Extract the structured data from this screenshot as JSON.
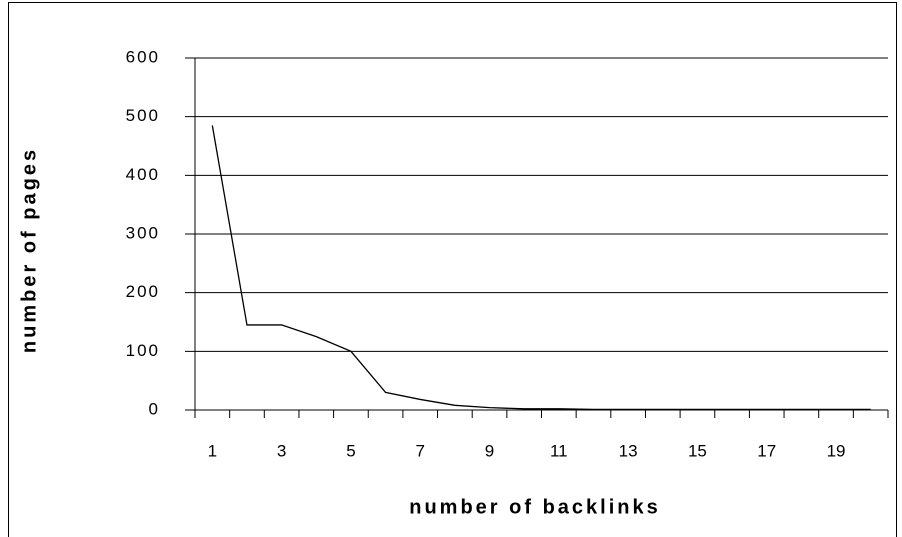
{
  "chart_data": {
    "type": "line",
    "categories": [
      1,
      null,
      3,
      null,
      5,
      null,
      7,
      null,
      9,
      null,
      11,
      null,
      13,
      null,
      15,
      null,
      17,
      null,
      19,
      null
    ],
    "values": [
      485,
      145,
      145,
      125,
      100,
      30,
      18,
      8,
      4,
      2,
      2,
      1,
      1,
      1,
      1,
      1,
      1,
      1,
      1,
      1
    ],
    "color": "#000000",
    "x_label": "number of backlinks",
    "y_label": "number of pages",
    "ylim": [
      0,
      600
    ],
    "yticks": [
      0,
      100,
      200,
      300,
      400,
      500,
      600
    ],
    "grid": true
  }
}
